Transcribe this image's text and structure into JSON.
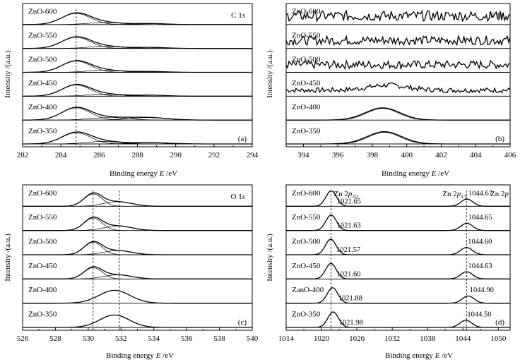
{
  "chart_data": [
    {
      "id": "a",
      "type": "line",
      "panel_label": "(a)",
      "element_label": "C 1",
      "element_orbital": "s",
      "ylabel": "Intensity /(a.u.)",
      "xlabel_text": "Binding energy",
      "xlabel_symbol": "E",
      "xlabel_unit": "/eV",
      "xlim": [
        282,
        294
      ],
      "xticks": [
        "282",
        "284",
        "286",
        "288",
        "290",
        "292",
        "294"
      ],
      "dashed_line_x": 284.8,
      "series": [
        {
          "name": "ZnO-350",
          "peaks": [
            {
              "c": 284.8,
              "h": 0.55,
              "w": 0.75
            },
            {
              "c": 286.2,
              "h": 0.12,
              "w": 0.9
            },
            {
              "c": 288.7,
              "h": 0.06,
              "w": 1.0
            }
          ]
        },
        {
          "name": "ZnO-400",
          "peaks": [
            {
              "c": 284.8,
              "h": 0.6,
              "w": 0.75
            },
            {
              "c": 286.5,
              "h": 0.12,
              "w": 1.0
            },
            {
              "c": 288.6,
              "h": 0.12,
              "w": 1.0
            }
          ]
        },
        {
          "name": "ZnO-450",
          "peaks": [
            {
              "c": 284.8,
              "h": 0.55,
              "w": 0.75
            },
            {
              "c": 286.3,
              "h": 0.1,
              "w": 0.9
            },
            {
              "c": 288.7,
              "h": 0.05,
              "w": 0.8
            }
          ]
        },
        {
          "name": "ZnO-500",
          "peaks": [
            {
              "c": 284.8,
              "h": 0.55,
              "w": 0.75
            },
            {
              "c": 286.3,
              "h": 0.1,
              "w": 0.9
            },
            {
              "c": 288.7,
              "h": 0.04,
              "w": 0.8
            }
          ]
        },
        {
          "name": "ZnO-550",
          "peaks": [
            {
              "c": 284.8,
              "h": 0.55,
              "w": 0.75
            },
            {
              "c": 286.3,
              "h": 0.1,
              "w": 0.9
            },
            {
              "c": 288.7,
              "h": 0.05,
              "w": 0.8
            }
          ]
        },
        {
          "name": "ZnO-600",
          "peaks": [
            {
              "c": 284.8,
              "h": 0.55,
              "w": 0.75
            },
            {
              "c": 286.3,
              "h": 0.1,
              "w": 0.9
            },
            {
              "c": 288.7,
              "h": 0.05,
              "w": 0.8
            }
          ]
        }
      ]
    },
    {
      "id": "b",
      "type": "line",
      "panel_label": "(b)",
      "element_label": "N 1",
      "element_orbital": "s",
      "ylabel": "Intensity /(a.u.)",
      "xlabel_text": "Binding energy",
      "xlabel_symbol": "E",
      "xlabel_unit": "/eV",
      "xlim": [
        393,
        406
      ],
      "xticks": [
        "394",
        "396",
        "398",
        "400",
        "402",
        "404",
        "406"
      ],
      "series": [
        {
          "name": "ZnO-350",
          "peaks": [
            {
              "c": 398.7,
              "h": 0.6,
              "w": 1.0
            }
          ],
          "noise": 0
        },
        {
          "name": "ZnO-400",
          "peaks": [
            {
              "c": 398.6,
              "h": 0.6,
              "w": 1.0
            }
          ],
          "noise": 0
        },
        {
          "name": "ZnO-450",
          "peaks": [
            {
              "c": 398.9,
              "h": 0.25,
              "w": 1.1
            }
          ],
          "noise": 0.12
        },
        {
          "name": "ZnO-500",
          "peaks": [],
          "noise": 0.2
        },
        {
          "name": "ZnO-550",
          "peaks": [],
          "noise": 0.22
        },
        {
          "name": "ZnO-600",
          "peaks": [],
          "noise": 0.25
        }
      ]
    },
    {
      "id": "c",
      "type": "line",
      "panel_label": "(c)",
      "element_label": "O 1",
      "element_orbital": "s",
      "ylabel": "Intensity /(a.u.)",
      "xlabel_text": "Binding energy",
      "xlabel_symbol": "E",
      "xlabel_unit": "/eV",
      "xlim": [
        526,
        540
      ],
      "xticks": [
        "526",
        "528",
        "530",
        "532",
        "534",
        "536",
        "538",
        "540"
      ],
      "dashed_lines_x": [
        530.3,
        531.9
      ],
      "series": [
        {
          "name": "ZnO-350",
          "peaks": [
            {
              "c": 531.6,
              "h": 0.6,
              "w": 0.9
            }
          ]
        },
        {
          "name": "ZnO-400",
          "peaks": [
            {
              "c": 531.6,
              "h": 0.62,
              "w": 0.95
            }
          ]
        },
        {
          "name": "ZnO-450",
          "peaks": [
            {
              "c": 530.3,
              "h": 0.55,
              "w": 0.55
            },
            {
              "c": 531.8,
              "h": 0.2,
              "w": 0.85
            }
          ]
        },
        {
          "name": "ZnO-500",
          "peaks": [
            {
              "c": 530.3,
              "h": 0.6,
              "w": 0.55
            },
            {
              "c": 531.8,
              "h": 0.2,
              "w": 0.85
            }
          ]
        },
        {
          "name": "ZnO-550",
          "peaks": [
            {
              "c": 530.3,
              "h": 0.6,
              "w": 0.55
            },
            {
              "c": 531.8,
              "h": 0.22,
              "w": 0.85
            }
          ]
        },
        {
          "name": "ZnO-600",
          "peaks": [
            {
              "c": 530.3,
              "h": 0.6,
              "w": 0.55
            },
            {
              "c": 531.8,
              "h": 0.22,
              "w": 0.85
            }
          ]
        }
      ]
    },
    {
      "id": "d",
      "type": "line",
      "panel_label": "(d)",
      "element_label": "Zn 2",
      "element_orbital": "p",
      "peak1_label": "Zn 2",
      "peak1_orbital": "p",
      "peak1_sub": "3/2",
      "peak2_label": "Zn 2",
      "peak2_orbital": "p",
      "peak2_sub": "1/2",
      "ylabel": "Intensity /(a.u.)",
      "xlabel_text": "Binding energy",
      "xlabel_symbol": "E",
      "xlabel_unit": "/eV",
      "xlim": [
        1014,
        1052
      ],
      "xticks": [
        "1014",
        "1020",
        "1026",
        "1032",
        "1038",
        "1044",
        "1050"
      ],
      "dashed_lines_x": [
        1021.6,
        1044.6
      ],
      "series": [
        {
          "name": "ZnO-350",
          "p1": "1021.98",
          "p2": "1044.50",
          "peaks": [
            {
              "c": 1021.98,
              "h": 0.75,
              "w": 0.9
            },
            {
              "c": 1044.5,
              "h": 0.35,
              "w": 1.0
            }
          ]
        },
        {
          "name": "ZanO-400",
          "p1": "1021.88",
          "p2": "1044.90",
          "peaks": [
            {
              "c": 1021.88,
              "h": 0.75,
              "w": 0.9
            },
            {
              "c": 1044.9,
              "h": 0.35,
              "w": 1.0
            }
          ]
        },
        {
          "name": "ZnO-450",
          "p1": "1021.60",
          "p2": "1044.63",
          "peaks": [
            {
              "c": 1021.6,
              "h": 0.75,
              "w": 0.9
            },
            {
              "c": 1044.63,
              "h": 0.35,
              "w": 1.0
            }
          ]
        },
        {
          "name": "ZnO-500",
          "p1": "1021.57",
          "p2": "1044.60",
          "peaks": [
            {
              "c": 1021.57,
              "h": 0.75,
              "w": 0.9
            },
            {
              "c": 1044.6,
              "h": 0.35,
              "w": 1.0
            }
          ]
        },
        {
          "name": "ZnO-550",
          "p1": "1021.63",
          "p2": "1044.65",
          "peaks": [
            {
              "c": 1021.63,
              "h": 0.75,
              "w": 0.9
            },
            {
              "c": 1044.65,
              "h": 0.35,
              "w": 1.0
            }
          ]
        },
        {
          "name": "ZnO-600",
          "p1": "1021.65",
          "p2": "1044.67",
          "peaks": [
            {
              "c": 1021.65,
              "h": 0.75,
              "w": 0.9
            },
            {
              "c": 1044.67,
              "h": 0.35,
              "w": 1.0
            }
          ]
        }
      ]
    }
  ]
}
